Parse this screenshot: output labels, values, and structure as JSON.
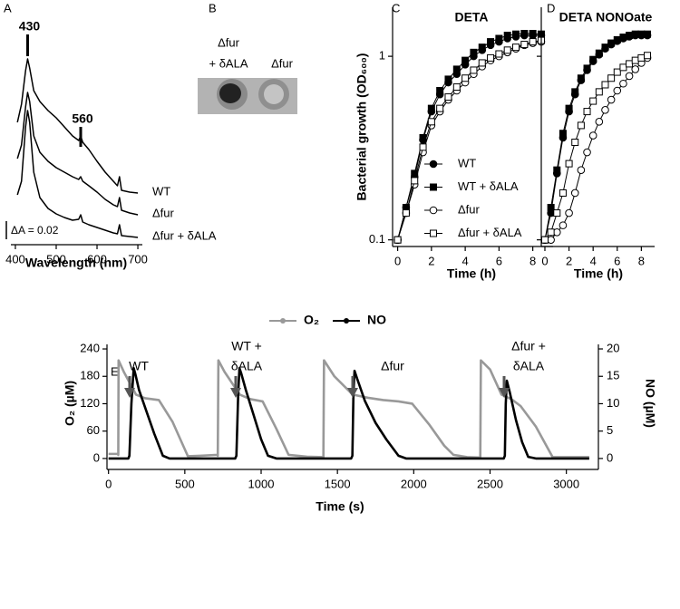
{
  "chart_data": [
    {
      "type": "line",
      "panel": "A",
      "x_label": "Wavelength (nm)",
      "x": [
        405,
        415,
        425,
        430,
        435,
        445,
        460,
        480,
        500,
        520,
        540,
        555,
        560,
        565,
        580,
        600,
        620,
        640,
        650,
        655,
        660,
        680,
        700
      ],
      "series": [
        {
          "name": "WT",
          "color": "#000000",
          "values": [
            0.128,
            0.148,
            0.185,
            0.198,
            0.188,
            0.163,
            0.151,
            0.141,
            0.133,
            0.123,
            0.113,
            0.108,
            0.113,
            0.106,
            0.098,
            0.085,
            0.073,
            0.063,
            0.058,
            0.068,
            0.053,
            0.051,
            0.05
          ]
        },
        {
          "name": "Δfur",
          "color": "#000000",
          "values": [
            0.088,
            0.103,
            0.145,
            0.161,
            0.151,
            0.113,
            0.095,
            0.085,
            0.078,
            0.073,
            0.068,
            0.065,
            0.068,
            0.063,
            0.058,
            0.051,
            0.043,
            0.037,
            0.035,
            0.045,
            0.031,
            0.028,
            0.026
          ]
        },
        {
          "name": "Δfur + δALA",
          "color": "#000000",
          "values": [
            0.048,
            0.063,
            0.123,
            0.141,
            0.128,
            0.073,
            0.045,
            0.033,
            0.027,
            0.023,
            0.02,
            0.021,
            0.026,
            0.018,
            0.015,
            0.012,
            0.009,
            0.006,
            0.005,
            0.015,
            0.003,
            0.002,
            0.001
          ]
        }
      ],
      "xlim": [
        389,
        711
      ],
      "xticks": [
        400,
        500,
        600,
        700
      ],
      "ylim": [
        -0.007,
        0.243
      ],
      "peak_labels": [
        430,
        560
      ],
      "scale_label": "ΔA = 0.02"
    },
    {
      "type": "line",
      "panel": "C",
      "title": "DETA",
      "x_label": "Time (h)",
      "y_label": "Bacterial growth (OD₆₀₀)",
      "log_y": true,
      "legend": "lower right",
      "x": [
        0,
        0.5,
        1,
        1.5,
        2,
        2.5,
        3,
        3.5,
        4,
        4.5,
        5,
        5.5,
        6,
        6.5,
        7,
        7.5,
        8,
        8.5
      ],
      "series": [
        {
          "name": "WT",
          "color": "#000000",
          "marker": "circle",
          "filled": true,
          "values": [
            0.1,
            0.15,
            0.22,
            0.35,
            0.5,
            0.62,
            0.72,
            0.8,
            0.9,
            1.0,
            1.08,
            1.15,
            1.2,
            1.25,
            1.28,
            1.3,
            1.3,
            1.3
          ]
        },
        {
          "name": "WT + δALA",
          "color": "#000000",
          "marker": "square",
          "filled": true,
          "values": [
            0.1,
            0.15,
            0.23,
            0.36,
            0.52,
            0.65,
            0.75,
            0.85,
            0.95,
            1.05,
            1.12,
            1.2,
            1.25,
            1.3,
            1.32,
            1.33,
            1.33,
            1.32
          ]
        },
        {
          "name": "Δfur",
          "color": "#000000",
          "marker": "circle",
          "filled": false,
          "values": [
            0.1,
            0.14,
            0.2,
            0.3,
            0.42,
            0.5,
            0.58,
            0.65,
            0.72,
            0.8,
            0.88,
            0.95,
            1.0,
            1.05,
            1.1,
            1.15,
            1.18,
            1.2
          ]
        },
        {
          "name": "Δfur + δALA",
          "color": "#000000",
          "marker": "square",
          "filled": false,
          "values": [
            0.1,
            0.14,
            0.21,
            0.32,
            0.44,
            0.52,
            0.6,
            0.68,
            0.76,
            0.84,
            0.92,
            0.98,
            1.03,
            1.08,
            1.12,
            1.16,
            1.2,
            1.22
          ]
        }
      ],
      "xlim": [
        -0.3,
        9.2
      ],
      "xticks": [
        0,
        2,
        4,
        6,
        8
      ],
      "ylim": [
        0.092,
        1.85
      ],
      "yticks": [
        0.1,
        1
      ]
    },
    {
      "type": "line",
      "panel": "D",
      "title": "DETA NONOate",
      "x_label": "Time (h)",
      "log_y": true,
      "ytick_labels": false,
      "x": [
        0,
        0.5,
        1,
        1.5,
        2,
        2.5,
        3,
        3.5,
        4,
        4.5,
        5,
        5.5,
        6,
        6.5,
        7,
        7.5,
        8,
        8.5
      ],
      "series": [
        {
          "color": "#000000",
          "marker": "circle",
          "filled": true,
          "values": [
            0.1,
            0.14,
            0.23,
            0.36,
            0.5,
            0.62,
            0.74,
            0.84,
            0.94,
            1.02,
            1.1,
            1.16,
            1.21,
            1.25,
            1.28,
            1.3,
            1.3,
            1.3
          ]
        },
        {
          "color": "#000000",
          "marker": "square",
          "filled": true,
          "values": [
            0.1,
            0.15,
            0.24,
            0.38,
            0.52,
            0.64,
            0.76,
            0.86,
            0.96,
            1.04,
            1.12,
            1.18,
            1.23,
            1.27,
            1.3,
            1.32,
            1.32,
            1.32
          ]
        },
        {
          "color": "#000000",
          "marker": "circle",
          "filled": false,
          "values": [
            0.1,
            0.1,
            0.11,
            0.12,
            0.14,
            0.18,
            0.24,
            0.3,
            0.37,
            0.44,
            0.51,
            0.58,
            0.65,
            0.71,
            0.78,
            0.85,
            0.92,
            0.98
          ]
        },
        {
          "color": "#000000",
          "marker": "square",
          "filled": false,
          "values": [
            0.1,
            0.11,
            0.14,
            0.18,
            0.26,
            0.34,
            0.42,
            0.5,
            0.57,
            0.64,
            0.7,
            0.76,
            0.82,
            0.87,
            0.91,
            0.95,
            0.98,
            1.01
          ]
        }
      ],
      "xlim": [
        -0.3,
        9.1
      ],
      "xticks": [
        0,
        2,
        4,
        6,
        8
      ],
      "ylim": [
        0.092,
        1.85
      ],
      "yticks": [
        0.1,
        1
      ]
    },
    {
      "type": "line",
      "panel": "E",
      "x_label": "Time (s)",
      "y_label": "O₂ (µM)",
      "y2_label": "NO (µM)",
      "legend": "top",
      "series": [
        {
          "name": "O₂",
          "color": "#999999",
          "x": [
            0,
            60,
            64,
            66,
            100,
            180,
            240,
            330,
            420,
            520,
            600,
            712,
            716,
            720,
            760,
            860,
            930,
            1010,
            1100,
            1180,
            1300,
            1404,
            1408,
            1412,
            1480,
            1600,
            1700,
            1800,
            1900,
            1990,
            2100,
            2200,
            2260,
            2350,
            2432,
            2436,
            2440,
            2500,
            2575,
            2640,
            2700,
            2800,
            2910,
            3000,
            3150
          ],
          "values": [
            10,
            10,
            8,
            215,
            190,
            140,
            132,
            128,
            80,
            5,
            6,
            8,
            6,
            215,
            190,
            140,
            130,
            125,
            65,
            8,
            4,
            3,
            2,
            215,
            180,
            140,
            133,
            128,
            125,
            120,
            75,
            28,
            8,
            3,
            2,
            2,
            215,
            195,
            140,
            130,
            115,
            70,
            3,
            3,
            3
          ]
        },
        {
          "name": "NO",
          "color": "#000000",
          "axis": "y2",
          "x": [
            0,
            130,
            137,
            150,
            165,
            175,
            200,
            250,
            300,
            356,
            400,
            700,
            830,
            838,
            850,
            858,
            870,
            900,
            950,
            1000,
            1045,
            1100,
            1590,
            1598,
            1605,
            1612,
            1630,
            1680,
            1750,
            1820,
            1900,
            1950,
            2590,
            2597,
            2603,
            2610,
            2630,
            2670,
            2710,
            2750,
            2800,
            3150
          ],
          "values": [
            0,
            0,
            0.5,
            10,
            16.5,
            15.5,
            12.5,
            8.5,
            4.5,
            0.5,
            0,
            0,
            0,
            0.5,
            12,
            16.5,
            15.5,
            12.5,
            8,
            3.5,
            0.5,
            0,
            0,
            0.5,
            12,
            16,
            14.5,
            10.5,
            6.5,
            3.5,
            0.5,
            0,
            0,
            0.5,
            10,
            14.2,
            12,
            7,
            3,
            0.3,
            0,
            0
          ]
        }
      ],
      "xlim": [
        -10,
        3210
      ],
      "xticks": [
        0,
        500,
        1000,
        1500,
        2000,
        2500,
        3000
      ],
      "ylim": [
        -24,
        250
      ],
      "yticks": [
        0,
        60,
        120,
        180,
        240
      ],
      "y2lim": [
        -2,
        20.83
      ],
      "y2ticks": [
        0,
        5,
        10,
        15,
        20
      ],
      "annotations": [
        [
          "WT"
        ],
        [
          "WT +",
          "δALA"
        ],
        [
          "Δfur"
        ],
        [
          "Δfur +",
          "δALA"
        ]
      ]
    }
  ],
  "panel_b": {
    "letter": "B",
    "labels": [
      "Δfur",
      "+ δALA",
      "Δfur"
    ]
  }
}
